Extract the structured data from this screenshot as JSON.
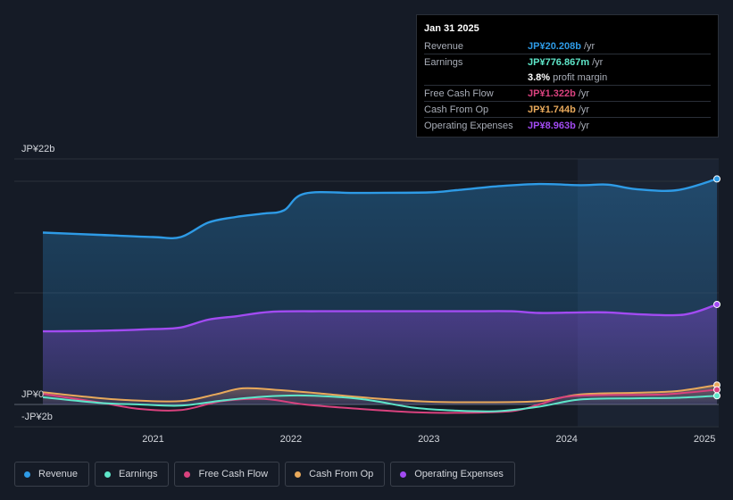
{
  "chart_data": {
    "type": "area",
    "y_top_label": "JP¥22b",
    "y_zero_label": "JP¥0",
    "y_bottom_label": "-JP¥2b",
    "ylim": [
      -2,
      22
    ],
    "xlim": [
      2020.2,
      2025.09
    ],
    "highlight_start": 2024.08,
    "x_ticks": [
      {
        "value": 2021,
        "label": "2021"
      },
      {
        "value": 2022,
        "label": "2022"
      },
      {
        "value": 2023,
        "label": "2023"
      },
      {
        "value": 2024,
        "label": "2024"
      },
      {
        "value": 2025,
        "label": "2025"
      }
    ],
    "series": [
      {
        "name": "Revenue",
        "color": "#2e9be6",
        "fill": true,
        "points": [
          [
            2020.2,
            15.4
          ],
          [
            2020.6,
            15.2
          ],
          [
            2021.0,
            15.0
          ],
          [
            2021.2,
            15.0
          ],
          [
            2021.4,
            16.3
          ],
          [
            2021.6,
            16.8
          ],
          [
            2021.8,
            17.1
          ],
          [
            2021.95,
            17.4
          ],
          [
            2022.1,
            18.9
          ],
          [
            2022.5,
            18.95
          ],
          [
            2023.0,
            19.0
          ],
          [
            2023.2,
            19.2
          ],
          [
            2023.5,
            19.55
          ],
          [
            2023.8,
            19.75
          ],
          [
            2024.1,
            19.65
          ],
          [
            2024.3,
            19.7
          ],
          [
            2024.5,
            19.3
          ],
          [
            2024.8,
            19.2
          ],
          [
            2025.09,
            20.208
          ]
        ]
      },
      {
        "name": "Operating Expenses",
        "color": "#a24bf2",
        "fill": true,
        "points": [
          [
            2020.2,
            6.55
          ],
          [
            2020.6,
            6.6
          ],
          [
            2021.0,
            6.75
          ],
          [
            2021.2,
            6.9
          ],
          [
            2021.4,
            7.6
          ],
          [
            2021.6,
            7.9
          ],
          [
            2021.85,
            8.3
          ],
          [
            2022.2,
            8.35
          ],
          [
            2022.6,
            8.35
          ],
          [
            2023.0,
            8.35
          ],
          [
            2023.3,
            8.35
          ],
          [
            2023.6,
            8.35
          ],
          [
            2023.8,
            8.2
          ],
          [
            2024.1,
            8.25
          ],
          [
            2024.3,
            8.25
          ],
          [
            2024.5,
            8.1
          ],
          [
            2024.85,
            8.05
          ],
          [
            2025.09,
            8.963
          ]
        ]
      },
      {
        "name": "Cash From Op",
        "color": "#e8a95b",
        "fill": true,
        "points": [
          [
            2020.2,
            1.1
          ],
          [
            2020.5,
            0.7
          ],
          [
            2020.8,
            0.4
          ],
          [
            2021.2,
            0.3
          ],
          [
            2021.45,
            0.9
          ],
          [
            2021.65,
            1.45
          ],
          [
            2021.9,
            1.3
          ],
          [
            2022.2,
            1.0
          ],
          [
            2022.6,
            0.55
          ],
          [
            2023.0,
            0.25
          ],
          [
            2023.4,
            0.2
          ],
          [
            2023.8,
            0.3
          ],
          [
            2024.1,
            0.9
          ],
          [
            2024.5,
            1.05
          ],
          [
            2024.8,
            1.2
          ],
          [
            2025.09,
            1.744
          ]
        ]
      },
      {
        "name": "Free Cash Flow",
        "color": "#d9427e",
        "fill": false,
        "points": [
          [
            2020.2,
            0.95
          ],
          [
            2020.6,
            0.2
          ],
          [
            2020.9,
            -0.4
          ],
          [
            2021.2,
            -0.5
          ],
          [
            2021.5,
            0.3
          ],
          [
            2021.8,
            0.5
          ],
          [
            2022.1,
            0.0
          ],
          [
            2022.5,
            -0.4
          ],
          [
            2022.9,
            -0.7
          ],
          [
            2023.2,
            -0.75
          ],
          [
            2023.6,
            -0.6
          ],
          [
            2023.8,
            0.0
          ],
          [
            2024.0,
            0.7
          ],
          [
            2024.3,
            0.85
          ],
          [
            2024.7,
            0.9
          ],
          [
            2025.09,
            1.322
          ]
        ]
      },
      {
        "name": "Earnings",
        "color": "#5ee6c9",
        "fill": false,
        "points": [
          [
            2020.2,
            0.65
          ],
          [
            2020.6,
            0.15
          ],
          [
            2020.9,
            0.0
          ],
          [
            2021.2,
            -0.1
          ],
          [
            2021.5,
            0.35
          ],
          [
            2021.8,
            0.7
          ],
          [
            2022.1,
            0.8
          ],
          [
            2022.5,
            0.5
          ],
          [
            2022.9,
            -0.3
          ],
          [
            2023.2,
            -0.55
          ],
          [
            2023.5,
            -0.6
          ],
          [
            2023.8,
            -0.2
          ],
          [
            2024.1,
            0.45
          ],
          [
            2024.5,
            0.55
          ],
          [
            2024.8,
            0.6
          ],
          [
            2025.09,
            0.777
          ]
        ]
      }
    ],
    "legend": [
      "Revenue",
      "Earnings",
      "Free Cash Flow",
      "Cash From Op",
      "Operating Expenses"
    ]
  },
  "tooltip": {
    "date": "Jan 31 2025",
    "rows": [
      {
        "label": "Revenue",
        "value": "JP¥20.208b",
        "unit": "/yr",
        "color": "#2e9be6"
      },
      {
        "label": "Earnings",
        "value": "JP¥776.867m",
        "unit": "/yr",
        "color": "#5ee6c9"
      },
      {
        "label": "",
        "value": "3.8%",
        "unit": "profit margin",
        "color": "#ffffff"
      },
      {
        "label": "Free Cash Flow",
        "value": "JP¥1.322b",
        "unit": "/yr",
        "color": "#d9427e"
      },
      {
        "label": "Cash From Op",
        "value": "JP¥1.744b",
        "unit": "/yr",
        "color": "#e8a95b"
      },
      {
        "label": "Operating Expenses",
        "value": "JP¥8.963b",
        "unit": "/yr",
        "color": "#a24bf2"
      }
    ]
  },
  "legend_items": [
    {
      "label": "Revenue",
      "color": "#2e9be6"
    },
    {
      "label": "Earnings",
      "color": "#5ee6c9"
    },
    {
      "label": "Free Cash Flow",
      "color": "#d9427e"
    },
    {
      "label": "Cash From Op",
      "color": "#e8a95b"
    },
    {
      "label": "Operating Expenses",
      "color": "#a24bf2"
    }
  ]
}
